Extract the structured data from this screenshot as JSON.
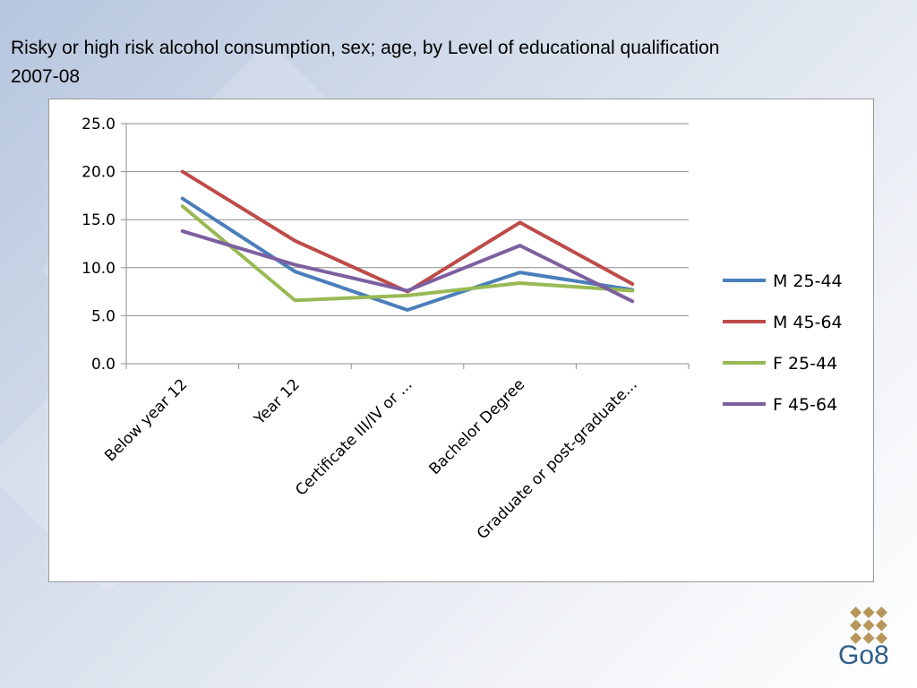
{
  "slide": {
    "title_line1": "Risky or high risk alcohol consumption, sex; age, by Level of educational qualification",
    "title_line2": "2007-08",
    "logo_text": "Go8",
    "logo_color": "#b8965a",
    "logo_text_color": "#2f5f8a"
  },
  "chart_data": {
    "type": "line",
    "title": "Risky or high risk alcohol consumption, sex; age, by Level of educational qualification 2007-08",
    "categories": [
      "Below year 12",
      "Year 12",
      "Certificate III/IV or ...",
      "Bachelor Degree",
      "Graduate or post-graduate..."
    ],
    "ylim": [
      0,
      25
    ],
    "yticks": [
      "0.0",
      "5.0",
      "10.0",
      "15.0",
      "20.0",
      "25.0"
    ],
    "grid": true,
    "legend_position": "right",
    "series": [
      {
        "name": "M 25-44",
        "color": "#4a7ebb",
        "values": [
          17.2,
          9.6,
          5.6,
          9.5,
          7.7
        ]
      },
      {
        "name": "M 45-64",
        "color": "#be4b48",
        "values": [
          20.0,
          12.8,
          7.5,
          14.7,
          8.3
        ]
      },
      {
        "name": "F 25-44",
        "color": "#98b954",
        "values": [
          16.4,
          6.6,
          7.1,
          8.4,
          7.6
        ]
      },
      {
        "name": "F 45-64",
        "color": "#7d5fa0",
        "values": [
          13.8,
          10.3,
          7.6,
          12.3,
          6.5
        ]
      }
    ]
  }
}
